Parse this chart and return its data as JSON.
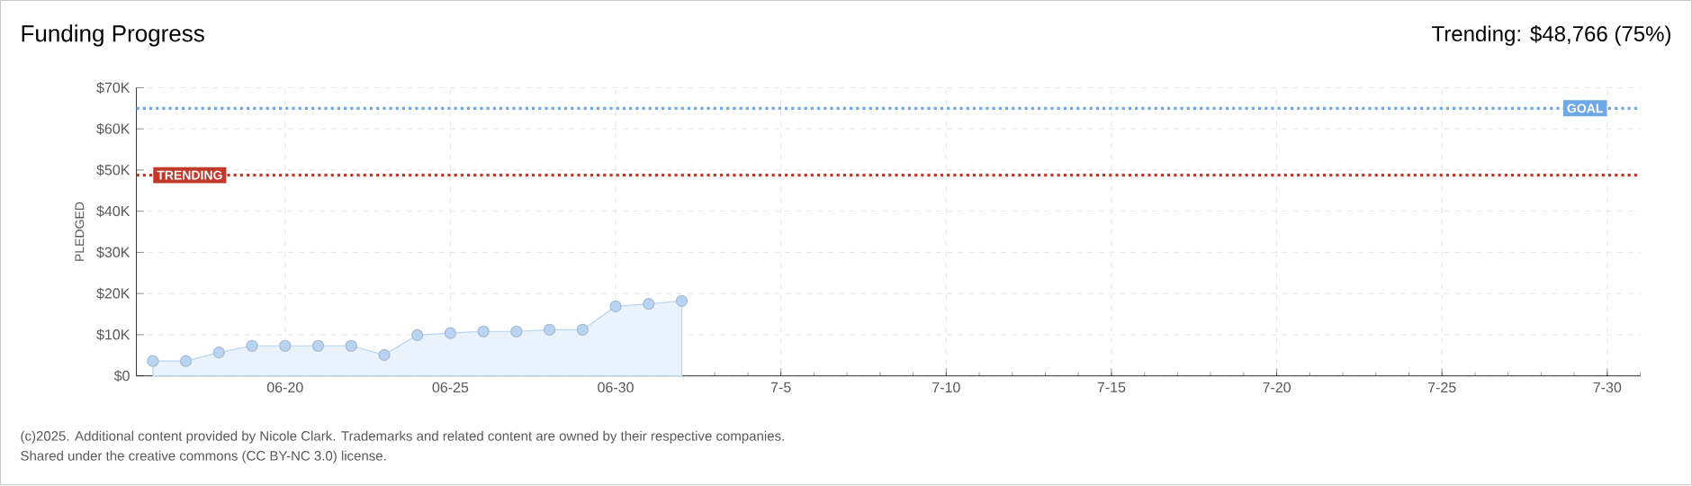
{
  "chart_data": {
    "type": "area",
    "title": "Funding Progress",
    "ylabel": "PLEDGED",
    "x": [
      "2025-06-16",
      "2025-06-17",
      "2025-06-18",
      "2025-06-19",
      "2025-06-20",
      "2025-06-21",
      "2025-06-22",
      "2025-06-23",
      "2025-06-24",
      "2025-06-25",
      "2025-06-26",
      "2025-06-27",
      "2025-06-28",
      "2025-06-29",
      "2025-06-30",
      "2025-07-01",
      "2025-07-02"
    ],
    "series": [
      {
        "color": "#b8d4f2",
        "values": [
          3600,
          3600,
          5700,
          7300,
          7300,
          7300,
          7300,
          5100,
          9900,
          10400,
          10800,
          10800,
          11200,
          11200,
          16900,
          17500,
          18200
        ]
      }
    ],
    "xlim": [
      "2025-06-15T12:00",
      "2025-07-31"
    ],
    "xticks": [
      {
        "value": "2025-06-20",
        "label": "06-20"
      },
      {
        "value": "2025-06-25",
        "label": "06-25"
      },
      {
        "value": "2025-06-30",
        "label": "06-30"
      },
      {
        "value": "2025-07-05",
        "label": "7-5"
      },
      {
        "value": "2025-07-10",
        "label": "7-10"
      },
      {
        "value": "2025-07-15",
        "label": "7-15"
      },
      {
        "value": "2025-07-20",
        "label": "7-20"
      },
      {
        "value": "2025-07-25",
        "label": "7-25"
      },
      {
        "value": "2025-07-30",
        "label": "7-30"
      }
    ],
    "ylim": [
      0,
      70000
    ],
    "yticks": [
      {
        "value": 0,
        "label": "$0"
      },
      {
        "value": 10000,
        "label": "$10K"
      },
      {
        "value": 20000,
        "label": "$20K"
      },
      {
        "value": 30000,
        "label": "$30K"
      },
      {
        "value": 40000,
        "label": "$40K"
      },
      {
        "value": 50000,
        "label": "$50K"
      },
      {
        "value": 60000,
        "label": "$60K"
      },
      {
        "value": 70000,
        "label": "$70K"
      }
    ],
    "ref_lines": [
      {
        "axis": "y",
        "value": 65000,
        "label": "GOAL",
        "color": "#6fa8e6",
        "line_style": "dotted"
      },
      {
        "axis": "y",
        "value": 48766,
        "label": "TRENDING",
        "color": "#c0392b",
        "line_style": "dotted"
      }
    ],
    "annotations": [
      "Trending: $48,766 (75%)",
      "(c)2025. Additional content provided by Nicole Clark. Trademarks and related content are owned by their respective companies.",
      "Shared under the creative commons (CC BY-NC 3.0) license."
    ],
    "grid": true,
    "marker": "circle"
  }
}
